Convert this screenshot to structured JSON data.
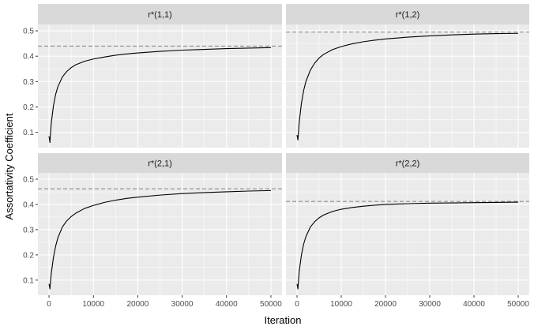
{
  "chart_data": {
    "type": "line",
    "xlabel": "Iteration",
    "ylabel": "Assortativity Coefficient",
    "xlim": [
      -2500,
      52500
    ],
    "ylim": [
      0.04,
      0.525
    ],
    "x_ticks": [
      0,
      10000,
      20000,
      30000,
      40000,
      50000
    ],
    "x_tick_labels": [
      "0",
      "10000",
      "20000",
      "30000",
      "40000",
      "50000"
    ],
    "y_ticks": [
      0.1,
      0.2,
      0.3,
      0.4,
      0.5
    ],
    "y_tick_labels": [
      "0.1",
      "0.2",
      "0.3",
      "0.4",
      "0.5"
    ],
    "grid": true,
    "panels": [
      {
        "strip": "r*(1,1)",
        "reference_line": 0.44,
        "x": [
          0,
          200,
          500,
          1000,
          1500,
          2000,
          3000,
          4000,
          5000,
          6000,
          8000,
          10000,
          12500,
          15000,
          17500,
          20000,
          25000,
          30000,
          35000,
          40000,
          45000,
          50000
        ],
        "y": [
          0.085,
          0.06,
          0.135,
          0.205,
          0.25,
          0.28,
          0.318,
          0.34,
          0.355,
          0.366,
          0.38,
          0.389,
          0.397,
          0.404,
          0.409,
          0.413,
          0.419,
          0.424,
          0.427,
          0.43,
          0.432,
          0.434
        ]
      },
      {
        "strip": "r*(1,2)",
        "reference_line": 0.495,
        "x": [
          0,
          200,
          500,
          1000,
          1500,
          2000,
          3000,
          4000,
          5000,
          6000,
          8000,
          10000,
          12500,
          15000,
          17500,
          20000,
          25000,
          30000,
          35000,
          40000,
          45000,
          50000
        ],
        "y": [
          0.09,
          0.07,
          0.14,
          0.215,
          0.265,
          0.3,
          0.345,
          0.373,
          0.393,
          0.407,
          0.426,
          0.438,
          0.449,
          0.457,
          0.463,
          0.468,
          0.475,
          0.48,
          0.484,
          0.487,
          0.489,
          0.49
        ]
      },
      {
        "strip": "r*(2,1)",
        "reference_line": 0.462,
        "x": [
          0,
          200,
          500,
          1000,
          1500,
          2000,
          3000,
          4000,
          5000,
          6000,
          8000,
          10000,
          12500,
          15000,
          17500,
          20000,
          25000,
          30000,
          35000,
          40000,
          45000,
          50000
        ],
        "y": [
          0.085,
          0.065,
          0.125,
          0.19,
          0.235,
          0.268,
          0.31,
          0.335,
          0.352,
          0.365,
          0.384,
          0.396,
          0.408,
          0.417,
          0.424,
          0.429,
          0.437,
          0.443,
          0.447,
          0.45,
          0.453,
          0.455
        ]
      },
      {
        "strip": "r*(2,2)",
        "reference_line": 0.412,
        "x": [
          0,
          200,
          500,
          1000,
          1500,
          2000,
          3000,
          4000,
          5000,
          6000,
          8000,
          10000,
          12500,
          15000,
          17500,
          20000,
          25000,
          30000,
          35000,
          40000,
          45000,
          50000
        ],
        "y": [
          0.085,
          0.065,
          0.135,
          0.2,
          0.243,
          0.272,
          0.31,
          0.332,
          0.347,
          0.358,
          0.372,
          0.381,
          0.388,
          0.393,
          0.397,
          0.4,
          0.403,
          0.405,
          0.406,
          0.407,
          0.408,
          0.409
        ]
      }
    ]
  },
  "colors": {
    "panel_background": "#ebebeb",
    "strip_background": "#d9d9d9",
    "grid_major": "#ffffff",
    "series": "#000000",
    "reference_line": "#808080"
  }
}
